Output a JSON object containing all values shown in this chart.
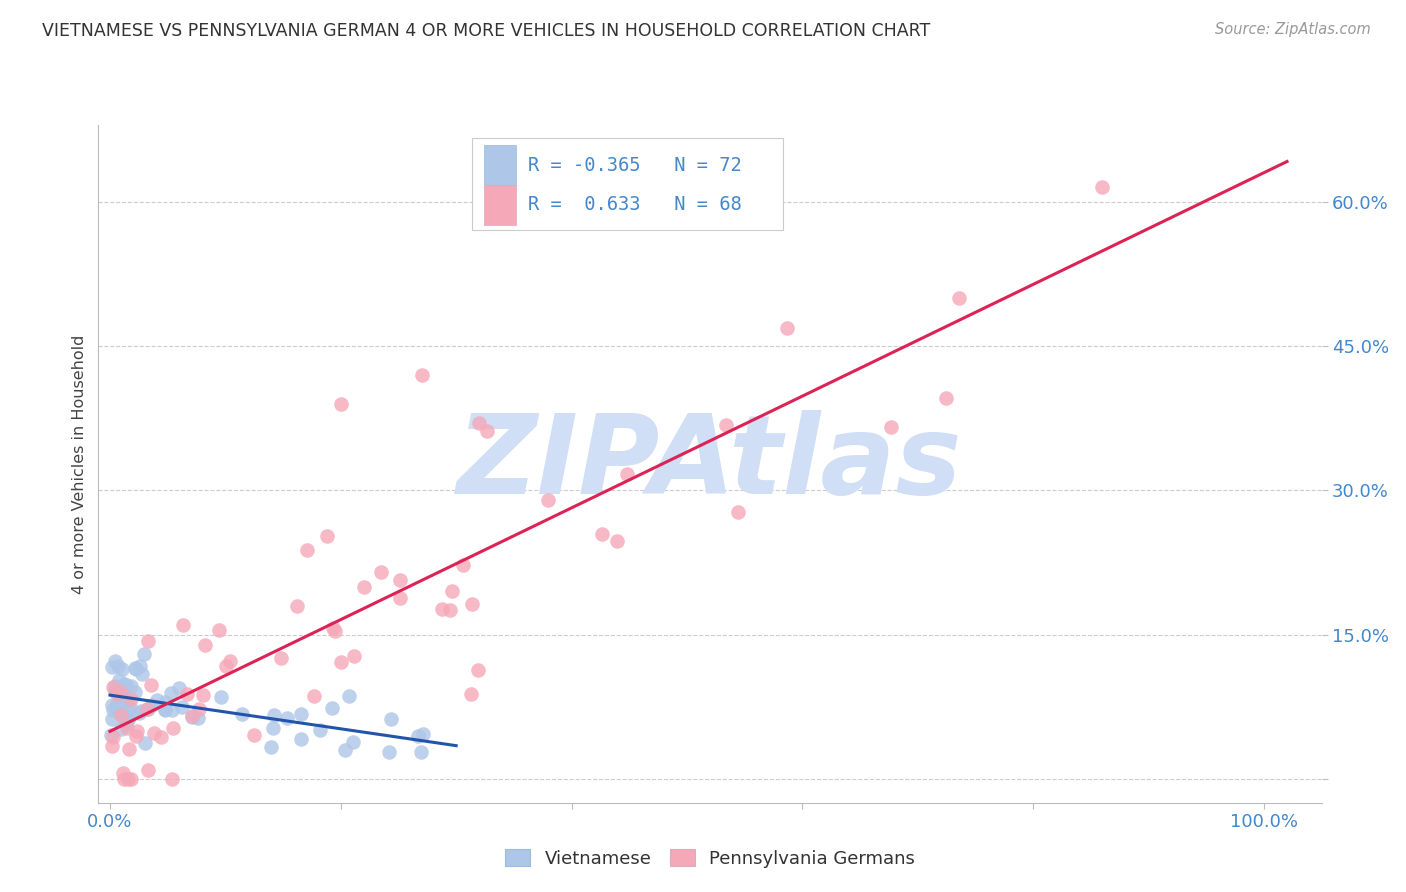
{
  "title": "VIETNAMESE VS PENNSYLVANIA GERMAN 4 OR MORE VEHICLES IN HOUSEHOLD CORRELATION CHART",
  "source": "Source: ZipAtlas.com",
  "ylabel": "4 or more Vehicles in Household",
  "x_tick_positions": [
    0.0,
    0.2,
    0.4,
    0.6,
    0.8,
    1.0
  ],
  "x_tick_labels": [
    "0.0%",
    "",
    "",
    "",
    "",
    "100.0%"
  ],
  "y_tick_positions": [
    0.0,
    0.15,
    0.3,
    0.45,
    0.6
  ],
  "y_tick_labels": [
    "",
    "15.0%",
    "30.0%",
    "45.0%",
    "60.0%"
  ],
  "xlim": [
    -0.01,
    1.05
  ],
  "ylim": [
    -0.025,
    0.68
  ],
  "legend_R_viet": "-0.365",
  "legend_N_viet": "72",
  "legend_R_penn": "0.633",
  "legend_N_penn": "68",
  "scatter_color_blue": "#aec6e8",
  "scatter_color_pink": "#f5a8b8",
  "line_color_blue": "#2255aa",
  "line_color_pink": "#dd2255",
  "watermark_text": "ZIPAtlas",
  "watermark_color": "#d0dff5",
  "background_color": "#ffffff",
  "grid_color": "#cccccc",
  "tick_label_color": "#4488cc",
  "title_color": "#333333",
  "source_color": "#999999",
  "ylabel_color": "#444444"
}
